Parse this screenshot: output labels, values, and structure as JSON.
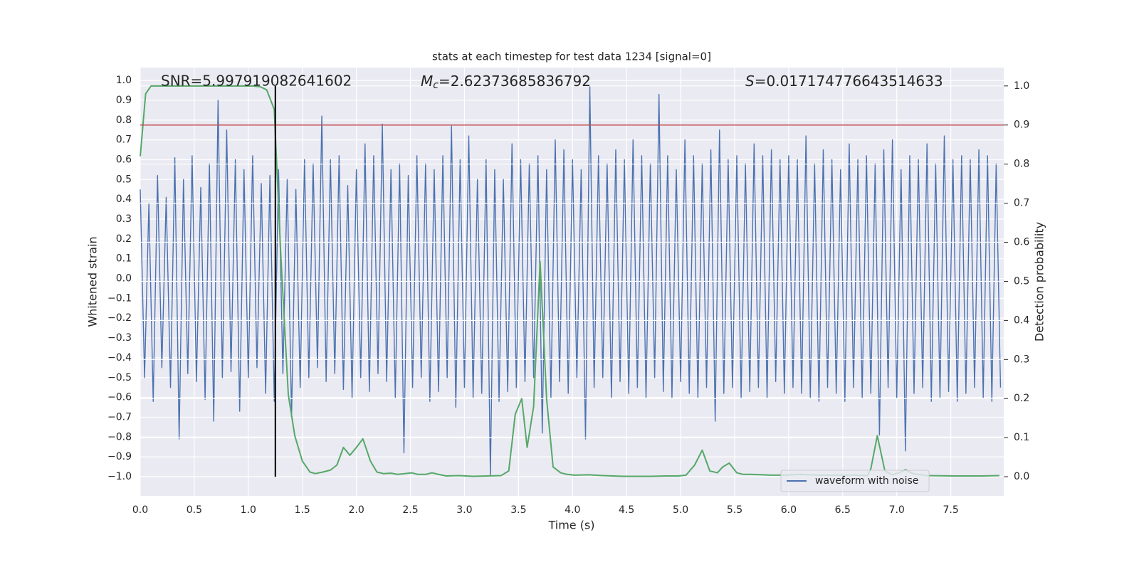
{
  "chart_data": {
    "type": "line",
    "title": "stats at each timestep for test data 1234 [signal=0]",
    "xlabel": "Time (s)",
    "ylabel": "Whitened strain",
    "y2label": "Detection probability",
    "annotations": [
      "SNR=5.997919082641602",
      "Mc=2.62373685836792",
      "S=0.017174776643514633"
    ],
    "xlim": [
      0,
      7.99
    ],
    "ylim": [
      -1.097,
      1.065
    ],
    "y2lim": [
      -0.049,
      1.047
    ],
    "xticks": [
      {
        "value": 0,
        "label": "0.0"
      },
      0.5,
      {
        "value": 1,
        "label": "1.0"
      },
      1.5,
      {
        "value": 2,
        "label": "2.0"
      },
      2.5,
      {
        "value": 3,
        "label": "3.0"
      },
      3.5,
      {
        "value": 4,
        "label": "4.0"
      },
      4.5,
      {
        "value": 5,
        "label": "5.0"
      },
      5.5,
      {
        "value": 6,
        "label": "6.0"
      },
      6.5,
      {
        "value": 7,
        "label": "7.0"
      },
      7.5
    ],
    "yticks": [
      {
        "value": -1,
        "label": "−1.0"
      },
      {
        "value": -0.9,
        "label": "−0.9"
      },
      {
        "value": -0.8,
        "label": "−0.8"
      },
      {
        "value": -0.7,
        "label": "−0.7"
      },
      {
        "value": -0.6,
        "label": "−0.6"
      },
      {
        "value": -0.5,
        "label": "−0.5"
      },
      {
        "value": -0.4,
        "label": "−0.4"
      },
      {
        "value": -0.3,
        "label": "−0.3"
      },
      {
        "value": -0.2,
        "label": "−0.2"
      },
      {
        "value": -0.1,
        "label": "−0.1"
      },
      {
        "value": 0,
        "label": "0.0"
      },
      0.1,
      0.2,
      0.3,
      0.4,
      0.5,
      0.6,
      0.7,
      0.8,
      0.9,
      {
        "value": 1,
        "label": "1.0"
      }
    ],
    "y2ticks": [
      {
        "value": 0,
        "label": "0.0"
      },
      0.1,
      0.2,
      0.3,
      0.4,
      0.5,
      0.6,
      0.7,
      0.8,
      0.9,
      {
        "value": 1,
        "label": "1.0"
      }
    ],
    "grid": true,
    "legend": "lower right",
    "series": [
      {
        "name": "waveform with noise",
        "color": "#4c72b0",
        "axis": "y",
        "x": [
          0,
          0.04,
          0.08,
          0.12,
          0.16,
          0.2,
          0.24,
          0.28,
          0.32,
          0.36,
          0.4,
          0.44,
          0.48,
          0.52,
          0.56,
          0.6,
          0.64,
          0.68,
          0.72,
          0.76,
          0.8,
          0.84,
          0.88,
          0.92,
          0.96,
          1,
          1.04,
          1.08,
          1.12,
          1.16,
          1.2,
          1.24,
          1.28,
          1.32,
          1.36,
          1.4,
          1.44,
          1.48,
          1.52,
          1.56,
          1.6,
          1.64,
          1.68,
          1.72,
          1.76,
          1.8,
          1.84,
          1.88,
          1.92,
          1.96,
          2,
          2.04,
          2.08,
          2.12,
          2.16,
          2.2,
          2.24,
          2.28,
          2.32,
          2.36,
          2.4,
          2.44,
          2.48,
          2.52,
          2.56,
          2.6,
          2.64,
          2.68,
          2.72,
          2.76,
          2.8,
          2.84,
          2.88,
          2.92,
          2.96,
          3,
          3.04,
          3.08,
          3.12,
          3.16,
          3.2,
          3.24,
          3.28,
          3.32,
          3.36,
          3.4,
          3.44,
          3.48,
          3.52,
          3.56,
          3.6,
          3.64,
          3.68,
          3.72,
          3.76,
          3.8,
          3.84,
          3.88,
          3.92,
          3.96,
          4,
          4.04,
          4.08,
          4.12,
          4.16,
          4.2,
          4.24,
          4.28,
          4.32,
          4.36,
          4.4,
          4.44,
          4.48,
          4.52,
          4.56,
          4.6,
          4.64,
          4.68,
          4.72,
          4.76,
          4.8,
          4.84,
          4.88,
          4.92,
          4.96,
          5,
          5.04,
          5.08,
          5.12,
          5.16,
          5.2,
          5.24,
          5.28,
          5.32,
          5.36,
          5.4,
          5.44,
          5.48,
          5.52,
          5.56,
          5.6,
          5.64,
          5.68,
          5.72,
          5.76,
          5.8,
          5.84,
          5.88,
          5.92,
          5.96,
          6,
          6.04,
          6.08,
          6.12,
          6.16,
          6.2,
          6.24,
          6.28,
          6.32,
          6.36,
          6.4,
          6.44,
          6.48,
          6.52,
          6.56,
          6.6,
          6.64,
          6.68,
          6.72,
          6.76,
          6.8,
          6.84,
          6.88,
          6.92,
          6.96,
          7,
          7.04,
          7.08,
          7.12,
          7.16,
          7.2,
          7.24,
          7.28,
          7.32,
          7.36,
          7.4,
          7.44,
          7.48,
          7.52,
          7.56,
          7.6,
          7.64,
          7.68,
          7.72,
          7.76,
          7.8,
          7.84,
          7.88,
          7.92,
          7.96
        ],
        "values": [
          0.45,
          -0.5,
          0.38,
          -0.62,
          0.52,
          -0.45,
          0.41,
          -0.55,
          0.61,
          -0.81,
          0.5,
          -0.48,
          0.62,
          -0.52,
          0.46,
          -0.61,
          0.58,
          -0.72,
          0.9,
          -0.5,
          0.75,
          -0.47,
          0.6,
          -0.67,
          0.55,
          -0.5,
          0.62,
          -0.45,
          0.48,
          -0.58,
          0.52,
          -0.62,
          0.55,
          -0.48,
          0.5,
          -0.7,
          0.45,
          -0.55,
          0.6,
          -0.5,
          0.58,
          -0.45,
          0.82,
          -0.52,
          0.6,
          -0.48,
          0.62,
          -0.56,
          0.47,
          -0.6,
          0.55,
          -0.5,
          0.68,
          -0.57,
          0.62,
          -0.48,
          0.78,
          -0.52,
          0.55,
          -0.6,
          0.58,
          -0.88,
          0.52,
          -0.55,
          0.62,
          -0.5,
          0.58,
          -0.62,
          0.55,
          -0.57,
          0.62,
          -0.5,
          0.77,
          -0.65,
          0.6,
          -0.55,
          0.72,
          -0.6,
          0.5,
          -0.58,
          0.6,
          -1.0,
          0.55,
          -0.62,
          0.5,
          -0.57,
          0.68,
          -0.55,
          0.6,
          -0.52,
          0.58,
          -0.5,
          0.62,
          -0.78,
          0.55,
          -0.6,
          0.7,
          -0.52,
          0.65,
          -0.58,
          0.6,
          -0.5,
          0.55,
          -0.81,
          0.97,
          -0.55,
          0.62,
          -0.5,
          0.58,
          -0.6,
          0.65,
          -0.52,
          0.6,
          -0.58,
          0.7,
          -0.55,
          0.62,
          -0.6,
          0.58,
          -0.5,
          0.93,
          -0.57,
          0.62,
          -0.6,
          0.55,
          -0.52,
          0.7,
          -0.58,
          0.62,
          -0.6,
          0.58,
          -0.55,
          0.65,
          -0.72,
          0.75,
          -0.58,
          0.6,
          -0.55,
          0.62,
          -0.6,
          0.58,
          -0.57,
          0.68,
          -0.55,
          0.62,
          -0.6,
          0.65,
          -0.52,
          0.6,
          -0.58,
          0.62,
          -0.55,
          0.6,
          -0.58,
          0.72,
          -0.6,
          0.58,
          -0.62,
          0.65,
          -0.55,
          0.6,
          -0.58,
          0.55,
          -0.62,
          0.68,
          -0.55,
          0.6,
          -0.6,
          0.62,
          -0.58,
          0.58,
          -0.79,
          0.65,
          -0.55,
          0.7,
          -0.6,
          0.55,
          -0.87,
          0.62,
          -0.58,
          0.6,
          -0.55,
          0.68,
          -0.62,
          0.58,
          -0.6,
          0.72,
          -0.57,
          0.6,
          -0.62,
          0.62,
          -0.58,
          0.6,
          -0.55,
          0.65,
          -0.6,
          0.62,
          -0.62,
          0.58,
          -0.55
        ]
      },
      {
        "color": "#55a868",
        "axis": "y2",
        "x": [
          0,
          0.05,
          0.1,
          1.04,
          1.11,
          1.17,
          1.24,
          1.3,
          1.37,
          1.43,
          1.5,
          1.57,
          1.62,
          1.69,
          1.76,
          1.82,
          1.88,
          1.94,
          2.0,
          2.06,
          2.13,
          2.19,
          2.25,
          2.32,
          2.38,
          2.45,
          2.51,
          2.57,
          2.64,
          2.7,
          2.76,
          2.83,
          2.95,
          3.08,
          3.21,
          3.34,
          3.41,
          3.47,
          3.53,
          3.58,
          3.64,
          3.7,
          3.76,
          3.82,
          3.89,
          3.95,
          4.02,
          4.15,
          4.28,
          4.47,
          4.73,
          4.86,
          4.98,
          5.05,
          5.13,
          5.2,
          5.27,
          5.34,
          5.39,
          5.45,
          5.52,
          5.58,
          5.65,
          5.84,
          5.97,
          6.1,
          6.29,
          6.48,
          6.6,
          6.73,
          6.76,
          6.82,
          6.89,
          6.96,
          7.02,
          7.08,
          7.15,
          7.27,
          7.53,
          7.78,
          7.95
        ],
        "values": [
          0.82,
          0.98,
          1.0,
          1.0,
          0.998,
          0.99,
          0.94,
          0.57,
          0.21,
          0.105,
          0.04,
          0.012,
          0.008,
          0.012,
          0.017,
          0.03,
          0.075,
          0.055,
          0.075,
          0.097,
          0.04,
          0.012,
          0.008,
          0.009,
          0.006,
          0.008,
          0.01,
          0.006,
          0.006,
          0.01,
          0.006,
          0.002,
          0.003,
          0.001,
          0.002,
          0.003,
          0.015,
          0.16,
          0.2,
          0.075,
          0.18,
          0.55,
          0.2,
          0.025,
          0.01,
          0.006,
          0.004,
          0.005,
          0.003,
          0.001,
          0.001,
          0.002,
          0.002,
          0.004,
          0.03,
          0.068,
          0.015,
          0.01,
          0.025,
          0.035,
          0.01,
          0.006,
          0.006,
          0.004,
          0.004,
          0.006,
          0.004,
          0.004,
          0.004,
          0.003,
          0.02,
          0.105,
          0.015,
          0.005,
          0.01,
          0.018,
          0.008,
          0.003,
          0.002,
          0.002,
          0.003
        ]
      }
    ],
    "hline": {
      "y": 0.9,
      "axis": "y2",
      "color": "#c44e52"
    },
    "vline": {
      "x": 1.25,
      "y": [
        0,
        1
      ],
      "axis": "y2",
      "color": "#000000"
    }
  }
}
